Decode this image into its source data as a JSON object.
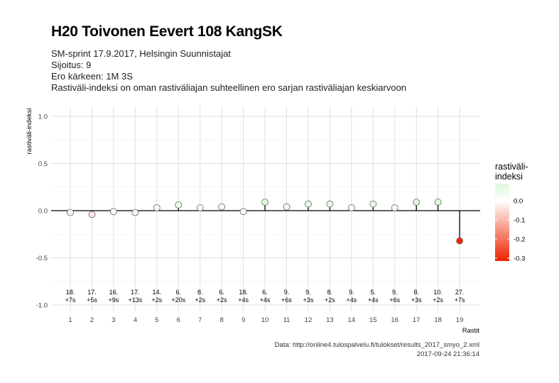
{
  "header": {
    "title": "H20 Toivonen Eevert 108 KangSK",
    "subtitle_lines": [
      "SM-sprint 17.9.2017, Helsingin Suunnistajat",
      "Sijoitus: 9",
      "Ero kärkeen: 1M 3S",
      "Rastiväli-indeksi on oman rastiväliajan suhteellinen ero sarjan rastiväliajan keskiarvoon"
    ]
  },
  "caption": {
    "source": "Data: http://online4.tulospalvelu.fi/tulokset/results_2017_smyo_2.xml",
    "timestamp": "2017-09-24 21:36:14"
  },
  "legend": {
    "title_line1": "rastiväli-",
    "title_line2": "indeksi",
    "ticks": [
      "0.0",
      "-0.1",
      "-0.2",
      "-0.3"
    ],
    "colors": {
      "high": "#dff7dc",
      "mid": "#ffffff",
      "low": "#ee2200"
    }
  },
  "chart_data": {
    "type": "lollipop",
    "xlabel": "Rastit",
    "ylabel": "rastiväli-indeksi",
    "ylim": [
      -1.0,
      1.0
    ],
    "yticks": [
      "1.0",
      "0.5",
      "0.0",
      "-0.5",
      "-1.0"
    ],
    "grid": true,
    "legend_position": "right",
    "categories": [
      1,
      2,
      3,
      4,
      5,
      6,
      7,
      8,
      9,
      10,
      11,
      12,
      13,
      14,
      15,
      16,
      17,
      18,
      19
    ],
    "values": [
      -0.02,
      -0.04,
      -0.01,
      -0.02,
      0.03,
      0.06,
      0.03,
      0.04,
      -0.01,
      0.09,
      0.04,
      0.07,
      0.07,
      0.03,
      0.07,
      0.03,
      0.09,
      0.09,
      -0.32
    ],
    "rank_labels": [
      "18.",
      "17.",
      "16.",
      "17.",
      "14.",
      "6.",
      "8.",
      "6.",
      "18.",
      "6.",
      "9.",
      "9.",
      "8.",
      "9.",
      "5.",
      "9.",
      "8.",
      "10.",
      "27."
    ],
    "diff_labels": [
      "+7s",
      "+5s",
      "+9s",
      "+13s",
      "+2s",
      "+20s",
      "+2s",
      "+2s",
      "+4s",
      "+4s",
      "+6s",
      "+3s",
      "+2s",
      "+4s",
      "+4s",
      "+6s",
      "+3s",
      "+2s",
      "+7s"
    ]
  }
}
